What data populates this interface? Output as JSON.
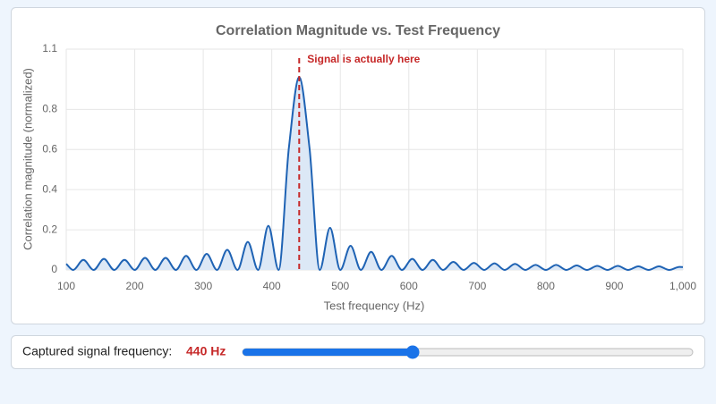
{
  "chart_data": {
    "type": "line",
    "title": "Correlation Magnitude vs. Test Frequency",
    "x_label": "Test frequency (Hz)",
    "y_label": "Correlation magnitude (normalized)",
    "x": [
      100,
      110,
      125,
      140,
      155,
      170,
      185,
      200,
      215,
      230,
      245,
      260,
      275,
      290,
      305,
      320,
      335,
      350,
      365,
      380,
      395,
      410,
      425,
      440,
      455,
      470,
      485,
      500,
      515,
      530,
      545,
      560,
      575,
      590,
      605,
      620,
      635,
      650,
      665,
      680,
      695,
      710,
      725,
      740,
      755,
      770,
      785,
      800,
      815,
      830,
      845,
      860,
      875,
      890,
      905,
      920,
      935,
      950,
      965,
      980,
      995,
      1000
    ],
    "series": [
      {
        "color": "#1f63b4",
        "fill": "#dce8f6",
        "values": [
          0.03,
          0,
          0.05,
          0,
          0.055,
          0,
          0.05,
          0,
          0.06,
          0,
          0.06,
          0,
          0.07,
          0,
          0.08,
          0,
          0.1,
          0,
          0.14,
          0,
          0.22,
          0,
          0.61,
          0.96,
          0.61,
          0,
          0.21,
          0,
          0.12,
          0,
          0.09,
          0,
          0.07,
          0,
          0.055,
          0,
          0.05,
          0,
          0.04,
          0,
          0.035,
          0,
          0.033,
          0,
          0.03,
          0,
          0.025,
          0,
          0.025,
          0,
          0.022,
          0,
          0.02,
          0,
          0.02,
          0,
          0.018,
          0,
          0.018,
          0,
          0.015,
          0.014
        ]
      }
    ],
    "xlim": [
      100,
      1000
    ],
    "xticks": [
      100,
      200,
      300,
      400,
      500,
      600,
      700,
      800,
      900,
      {
        "value": 1000,
        "label": "1,000"
      }
    ],
    "ylim": [
      0,
      1.1
    ],
    "yticks": [
      0,
      0.2,
      0.4,
      0.6,
      0.8,
      1.1
    ],
    "grid": true,
    "annotation": {
      "x": 440,
      "text": "Signal is actually here",
      "color": "#c62828"
    }
  },
  "control": {
    "label": "Captured signal frequency:",
    "value": 440,
    "value_label": "440 Hz"
  }
}
